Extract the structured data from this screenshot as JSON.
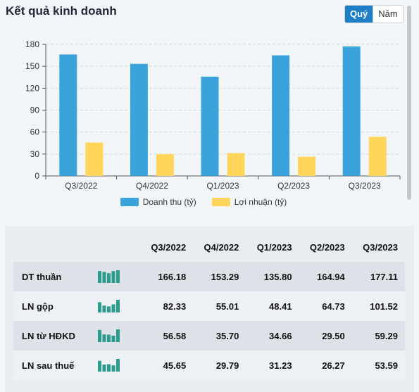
{
  "header": {
    "title": "Kết quả kinh doanh"
  },
  "period_toggle": {
    "options": [
      "Quý",
      "Năm"
    ],
    "selected": "Quý"
  },
  "colors": {
    "revenue": "#3aa3dc",
    "profit": "#ffd55a",
    "spark": "#2a9d8f",
    "accent": "#1e7fc7"
  },
  "chart_data": {
    "type": "bar",
    "categories": [
      "Q3/2022",
      "Q4/2022",
      "Q1/2023",
      "Q2/2023",
      "Q3/2023"
    ],
    "series": [
      {
        "name": "Doanh thu (tỷ)",
        "values": [
          166.18,
          153.29,
          135.8,
          164.94,
          177.11
        ]
      },
      {
        "name": "Lợi nhuận (tỷ)",
        "values": [
          45.65,
          29.79,
          31.23,
          26.27,
          53.59
        ]
      }
    ],
    "yticks": [
      0,
      30,
      60,
      90,
      120,
      150,
      180
    ],
    "ylim": [
      0,
      180
    ],
    "grid": true,
    "legend_position": "bottom"
  },
  "table": {
    "columns": [
      "Q3/2022",
      "Q4/2022",
      "Q1/2023",
      "Q2/2023",
      "Q3/2023"
    ],
    "rows": [
      {
        "label": "DT thuần",
        "values": [
          "166.18",
          "153.29",
          "135.80",
          "164.94",
          "177.11"
        ],
        "spark": [
          166.18,
          153.29,
          135.8,
          164.94,
          177.11
        ]
      },
      {
        "label": "LN gộp",
        "values": [
          "82.33",
          "55.01",
          "48.41",
          "64.73",
          "101.52"
        ],
        "spark": [
          82.33,
          55.01,
          48.41,
          64.73,
          101.52
        ]
      },
      {
        "label": "LN từ HĐKD",
        "values": [
          "56.58",
          "35.70",
          "34.66",
          "29.50",
          "59.29"
        ],
        "spark": [
          56.58,
          35.7,
          34.66,
          29.5,
          59.29
        ]
      },
      {
        "label": "LN sau thuế",
        "values": [
          "45.65",
          "29.79",
          "31.23",
          "26.27",
          "53.59"
        ],
        "spark": [
          45.65,
          29.79,
          31.23,
          26.27,
          53.59
        ]
      }
    ]
  }
}
